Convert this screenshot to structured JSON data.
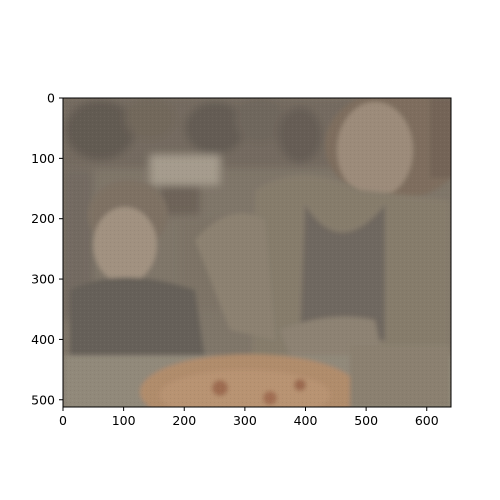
{
  "chart_data": {
    "type": "image",
    "title": "",
    "xlabel": "",
    "ylabel": "",
    "xlim": [
      0,
      640
    ],
    "ylim": [
      512,
      0
    ],
    "x_ticks": [
      0,
      100,
      200,
      300,
      400,
      500,
      600
    ],
    "y_ticks": [
      0,
      100,
      200,
      300,
      400,
      500
    ],
    "x_tick_labels": [
      "0",
      "100",
      "200",
      "300",
      "400",
      "500",
      "600"
    ],
    "y_tick_labels": [
      "0",
      "100",
      "200",
      "300",
      "400",
      "500"
    ],
    "grid": false,
    "legend": "none"
  },
  "image": {
    "subject": "child-and-woman-at-table-with-pizza",
    "palette": {
      "background": "#7d7467",
      "skin": "#a08d78",
      "cardigan": "#857b6b",
      "shirt": "#6a645b",
      "pizza": "#b98f6a",
      "dark": "#4f4a45",
      "table": "#938b7c"
    }
  }
}
